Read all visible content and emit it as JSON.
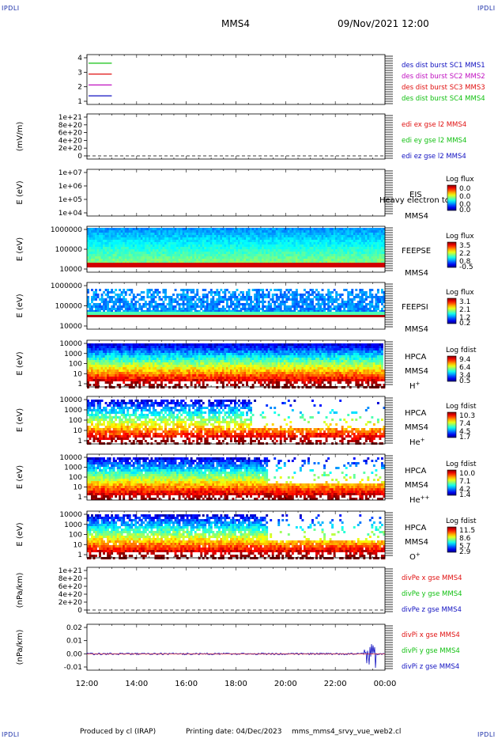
{
  "header": {
    "mission": "MMS4",
    "datetime": "09/Nov/2021 12:00",
    "corner_label": "IPDLI"
  },
  "footer": {
    "producer": "Produced by cl (IRAP)",
    "print_date": "Printing date: 04/Dec/2023",
    "filename": "mms_mms4_srvy_vue_web2.cl"
  },
  "x_axis": {
    "ticks": [
      "12:00",
      "14:00",
      "16:00",
      "18:00",
      "20:00",
      "22:00",
      "00:00"
    ]
  },
  "colors": {
    "red": "#e01010",
    "green": "#10c010",
    "blue": "#1010c0",
    "magenta": "#c010c0"
  },
  "chart_data": [
    {
      "type": "line",
      "panel": "burst",
      "yticks": [
        "4",
        "3",
        "2",
        "1"
      ],
      "ylim": [
        0.5,
        4.5
      ],
      "legend": [
        {
          "name": "des dist burst SC1 MMS1",
          "color": "#1010c0"
        },
        {
          "name": "des dist burst SC2 MMS2",
          "color": "#c010c0"
        },
        {
          "name": "des dist burst SC3 MMS3",
          "color": "#e01010"
        },
        {
          "name": "des dist burst SC4 MMS4",
          "color": "#10c010"
        }
      ],
      "series": [
        {
          "level": 4,
          "x": [
            "12:00",
            "13:00"
          ],
          "color": "#10c010"
        },
        {
          "level": 3,
          "x": [
            "12:00",
            "13:00"
          ],
          "color": "#e01010"
        },
        {
          "level": 2,
          "x": [
            "12:00",
            "13:00"
          ],
          "color": "#c010c0"
        },
        {
          "level": 1,
          "x": [
            "12:00",
            "13:00"
          ],
          "color": "#1010c0"
        }
      ]
    },
    {
      "type": "line",
      "panel": "edi",
      "ylabel": "(mV/m)",
      "yticks": [
        "1e+21",
        "8e+20",
        "6e+20",
        "4e+20",
        "2e+20",
        "0"
      ],
      "legend": [
        {
          "name": "edi ex gse l2 MMS4",
          "color": "#e01010"
        },
        {
          "name": "edi ey gse l2 MMS4",
          "color": "#10c010"
        },
        {
          "name": "edi ez gse l2 MMS4",
          "color": "#1010c0"
        }
      ]
    },
    {
      "type": "heatmap",
      "panel": "eis",
      "ylabel": "E (eV)",
      "yticks": [
        "1e+07",
        "1e+06",
        "1e+05",
        "1e+04"
      ],
      "instrument": "EIS",
      "species": "Heavy electron to",
      "sc": "MMS4",
      "cbar_title": "Log flux",
      "cbar_ticks": [
        "0.0",
        "0.0",
        "0.0",
        "0.0"
      ]
    },
    {
      "type": "heatmap",
      "panel": "feepse",
      "ylabel": "E (eV)",
      "yticks": [
        "1000000",
        "100000",
        "10000"
      ],
      "instrument": "FEEPSE",
      "sc": "MMS4",
      "cbar_title": "Log flux",
      "cbar_ticks": [
        "3.5",
        "2.2",
        "0.8",
        "-0.5"
      ]
    },
    {
      "type": "heatmap",
      "panel": "feepsi",
      "ylabel": "E (eV)",
      "yticks": [
        "1000000",
        "100000",
        "10000"
      ],
      "instrument": "FEEPSI",
      "sc": "MMS4",
      "cbar_title": "Log flux",
      "cbar_ticks": [
        "3.1",
        "2.1",
        "1.2",
        "0.2"
      ]
    },
    {
      "type": "heatmap",
      "panel": "hpca_h",
      "ylabel": "E (eV)",
      "yticks": [
        "10000",
        "1000",
        "100",
        "10",
        "1"
      ],
      "instrument": "HPCA",
      "sc": "MMS4",
      "species": "H",
      "species_sup": "+",
      "cbar_title": "Log fdist",
      "cbar_ticks": [
        "9.4",
        "6.4",
        "3.4",
        "0.5"
      ]
    },
    {
      "type": "heatmap",
      "panel": "hpca_he",
      "ylabel": "E (eV)",
      "yticks": [
        "10000",
        "1000",
        "100",
        "10",
        "1"
      ],
      "instrument": "HPCA",
      "sc": "MMS4",
      "species": "He",
      "species_sup": "+",
      "cbar_title": "Log fdist",
      "cbar_ticks": [
        "10.3",
        "7.4",
        "4.5",
        "1.7"
      ]
    },
    {
      "type": "heatmap",
      "panel": "hpca_hepp",
      "ylabel": "E (eV)",
      "yticks": [
        "10000",
        "1000",
        "100",
        "10",
        "1"
      ],
      "instrument": "HPCA",
      "sc": "MMS4",
      "species": "He",
      "species_sup": "++",
      "cbar_title": "Log fdist",
      "cbar_ticks": [
        "10.0",
        "7.1",
        "4.2",
        "1.4"
      ]
    },
    {
      "type": "heatmap",
      "panel": "hpca_o",
      "ylabel": "E (eV)",
      "yticks": [
        "10000",
        "1000",
        "100",
        "10",
        "1"
      ],
      "instrument": "HPCA",
      "sc": "MMS4",
      "species": "O",
      "species_sup": "+",
      "cbar_title": "Log fdist",
      "cbar_ticks": [
        "11.5",
        "8.6",
        "5.7",
        "2.9"
      ]
    },
    {
      "type": "line",
      "panel": "divpe",
      "ylabel": "(nPa/km)",
      "yticks": [
        "1e+21",
        "8e+20",
        "6e+20",
        "4e+20",
        "2e+20",
        "0"
      ],
      "legend": [
        {
          "name": "divPe x gse MMS4",
          "color": "#e01010"
        },
        {
          "name": "divPe y gse MMS4",
          "color": "#10c010"
        },
        {
          "name": "divPe z gse MMS4",
          "color": "#1010c0"
        }
      ]
    },
    {
      "type": "line",
      "panel": "divpi",
      "ylabel": "(nPa/km)",
      "yticks": [
        "0.02",
        "0.01",
        "0.00",
        "-0.01"
      ],
      "ylim": [
        -0.015,
        0.022
      ],
      "legend": [
        {
          "name": "divPi x gse MMS4",
          "color": "#e01010"
        },
        {
          "name": "divPi y gse MMS4",
          "color": "#10c010"
        },
        {
          "name": "divPi z gse MMS4",
          "color": "#1010c0"
        }
      ]
    }
  ]
}
